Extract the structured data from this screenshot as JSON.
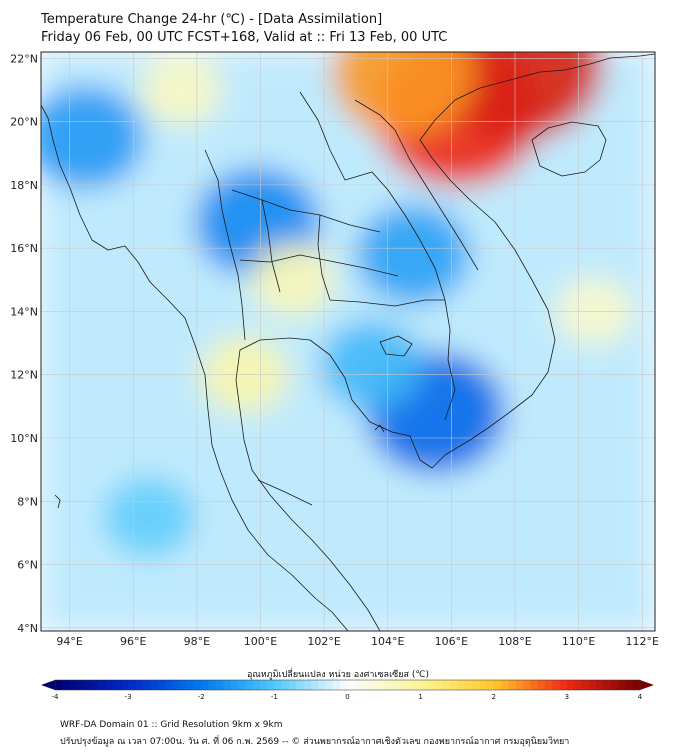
{
  "header": {
    "title": "Temperature Change 24-hr (℃) - [Data Assimilation]",
    "subtitle": "Friday 06 Feb, 00 UTC FCST+168, Valid at :: Fri 13 Feb, 00 UTC"
  },
  "axes": {
    "lon_labels": [
      "94°E",
      "96°E",
      "98°E",
      "100°E",
      "102°E",
      "104°E",
      "106°E",
      "108°E",
      "110°E",
      "112°E"
    ],
    "lon_values": [
      94,
      96,
      98,
      100,
      102,
      104,
      106,
      108,
      110,
      112
    ],
    "lat_labels": [
      "22°N",
      "20°N",
      "18°N",
      "16°N",
      "14°N",
      "12°N",
      "10°N",
      "8°N",
      "6°N",
      "4°N"
    ],
    "lat_values": [
      22,
      20,
      18,
      16,
      14,
      12,
      10,
      8,
      6,
      4
    ],
    "lon_range": [
      93.1,
      112.4
    ],
    "lat_range": [
      3.9,
      22.2
    ]
  },
  "field": {
    "cold_centers": [
      {
        "lon": 94.5,
        "lat": 19.5,
        "value": -1.6
      },
      {
        "lon": 99.9,
        "lat": 16.8,
        "value": -1.8
      },
      {
        "lon": 104.8,
        "lat": 15.8,
        "value": -1.5
      },
      {
        "lon": 105.5,
        "lat": 10.8,
        "value": -2.2
      },
      {
        "lon": 103.5,
        "lat": 12.3,
        "value": -1.2
      },
      {
        "lon": 96.5,
        "lat": 7.5,
        "value": -0.9
      }
    ],
    "warm_centers": [
      {
        "lon": 106.2,
        "lat": 20.3,
        "value": 3.0
      },
      {
        "lon": 108.0,
        "lat": 21.8,
        "value": 3.2
      },
      {
        "lon": 104.5,
        "lat": 21.5,
        "value": 2.3
      },
      {
        "lon": 99.5,
        "lat": 12.0,
        "value": 0.8
      },
      {
        "lon": 101.0,
        "lat": 15.0,
        "value": 0.7
      },
      {
        "lon": 110.5,
        "lat": 14.0,
        "value": 0.5
      },
      {
        "lon": 97.5,
        "lat": 21.0,
        "value": 0.6
      }
    ]
  },
  "colorbar": {
    "title": "อุณหภูมิเปลี่ยนแปลง หน่วย องศาเซลเซียส (℃)",
    "tick_labels": [
      "-4",
      "-3",
      "-2",
      "-1",
      "0",
      "1",
      "2",
      "3",
      "4"
    ],
    "min": -4,
    "max": 4
  },
  "footer": {
    "line1": "WRF-DA Domain 01 :: Grid Resolution 9km x 9km",
    "line2": "ปรับปรุงข้อมูล ณ เวลา 07:00น. วัน ศ. ที่ 06 ก.พ. 2569 -- © ส่วนพยากรณ์อากาศเชิงตัวเลข กองพยากรณ์อากาศ กรมอุตุนิยมวิทยา"
  }
}
